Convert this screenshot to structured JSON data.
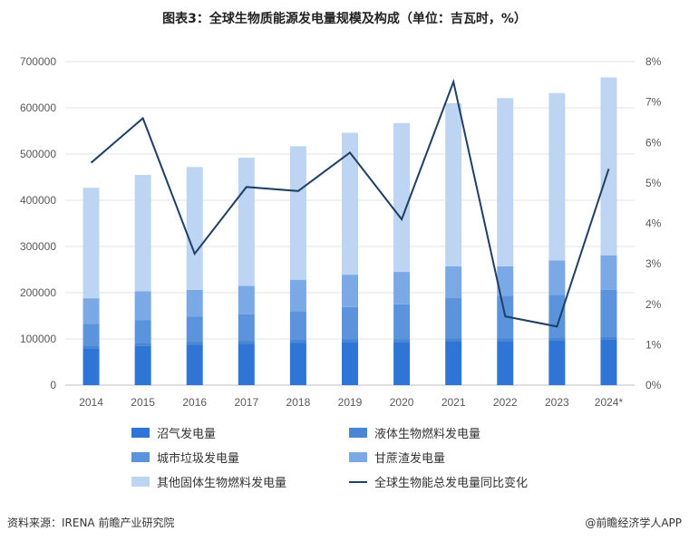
{
  "header": {
    "title": "图表3：全球生物质能源发电量规模及构成（单位：吉瓦时，%）"
  },
  "footer": {
    "source": "资料来源：IRENA  前瞻产业研究院",
    "brand": "@前瞻经济学人APP"
  },
  "chart_data": {
    "type": "bar",
    "stacked": true,
    "categories": [
      "2014",
      "2015",
      "2016",
      "2017",
      "2018",
      "2019",
      "2020",
      "2021",
      "2022",
      "2023",
      "2024*"
    ],
    "y_left": {
      "ticks": [
        "0",
        "100000",
        "200000",
        "300000",
        "400000",
        "500000",
        "600000",
        "700000"
      ],
      "lim": [
        0,
        700000
      ]
    },
    "y_right": {
      "ticks": [
        "0%",
        "1%",
        "2%",
        "3%",
        "4%",
        "5%",
        "6%",
        "7%",
        "8%"
      ],
      "lim": [
        0,
        8
      ]
    },
    "series": [
      {
        "name": "沼气发电量",
        "color": "#2e75d6",
        "values": [
          80000,
          85000,
          88000,
          90000,
          92000,
          93000,
          93000,
          95000,
          95000,
          96000,
          98000
        ]
      },
      {
        "name": "液体生物燃料发电量",
        "color": "#4a86d4",
        "values": [
          6000,
          6000,
          6000,
          6000,
          6000,
          6000,
          6000,
          6000,
          6000,
          6000,
          6000
        ]
      },
      {
        "name": "城市垃圾发电量",
        "color": "#5b93dd",
        "values": [
          47000,
          50000,
          54000,
          57000,
          62000,
          70000,
          76000,
          88000,
          92000,
          93000,
          102000
        ]
      },
      {
        "name": "甘蔗渣发电量",
        "color": "#7ba9e6",
        "values": [
          55000,
          62000,
          58000,
          62000,
          68000,
          70000,
          70000,
          68000,
          64000,
          75000,
          75000
        ]
      },
      {
        "name": "其他固体生物燃料发电量",
        "color": "#bdd5f3",
        "values": [
          239000,
          252000,
          266000,
          277000,
          289000,
          307000,
          322000,
          353000,
          364000,
          362000,
          385000
        ]
      }
    ],
    "line": {
      "name": "全球生物能总发电量同比变化",
      "color": "#1f3f66",
      "axis": "right",
      "values": [
        5.5,
        6.6,
        3.25,
        4.9,
        4.8,
        5.75,
        4.1,
        7.5,
        1.7,
        1.45,
        5.35
      ]
    },
    "legend": [
      "沼气发电量",
      "液体生物燃料发电量",
      "城市垃圾发电量",
      "甘蔗渣发电量",
      "其他固体生物燃料发电量",
      "全球生物能总发电量同比变化"
    ]
  }
}
